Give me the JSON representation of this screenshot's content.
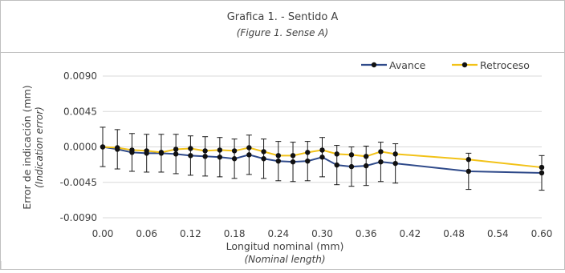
{
  "header": {
    "title": "Grafica 1. - Sentido A",
    "subtitle": "(Figure 1. Sense A)"
  },
  "chart_data": {
    "type": "line",
    "title": "",
    "xlabel": "Longitud nominal (mm)",
    "xlabel_en": "(Nominal length)",
    "ylabel": "Error de indicación (mm)",
    "ylabel_en": "(Indication error)",
    "xlim": [
      0,
      0.6
    ],
    "ylim": [
      -0.009,
      0.009
    ],
    "x_ticks": [
      "0.00",
      "0.06",
      "0.12",
      "0.18",
      "0.24",
      "0.30",
      "0.36",
      "0.42",
      "0.48",
      "0.54",
      "0.60"
    ],
    "y_ticks": [
      "0.0090",
      "0.0045",
      "0.0000",
      "-0.0045",
      "-0.0090"
    ],
    "grid": "horizontal",
    "legend_position": "top-right",
    "series": [
      {
        "name": "Avance",
        "color": "#2f4a8a",
        "x": [
          0.0,
          0.02,
          0.04,
          0.06,
          0.08,
          0.1,
          0.12,
          0.14,
          0.16,
          0.18,
          0.2,
          0.22,
          0.24,
          0.26,
          0.28,
          0.3,
          0.32,
          0.34,
          0.36,
          0.38,
          0.4,
          0.5,
          0.6
        ],
        "y": [
          0.0,
          -0.0003,
          -0.0007,
          -0.0008,
          -0.0008,
          -0.0009,
          -0.0011,
          -0.0012,
          -0.0013,
          -0.0015,
          -0.001,
          -0.0015,
          -0.0018,
          -0.0019,
          -0.0018,
          -0.0013,
          -0.0023,
          -0.0025,
          -0.0024,
          -0.0019,
          -0.0021,
          -0.0031,
          -0.0033
        ],
        "err": [
          0.0025,
          0.0025,
          0.0024,
          0.0024,
          0.0024,
          0.0025,
          0.0025,
          0.0025,
          0.0025,
          0.0025,
          0.0025,
          0.0025,
          0.0025,
          0.0025,
          0.0025,
          0.0025,
          0.0025,
          0.0025,
          0.0025,
          0.0025,
          0.0025,
          0.0023,
          0.0022
        ]
      },
      {
        "name": "Retroceso",
        "color": "#f2c218",
        "x": [
          0.0,
          0.02,
          0.04,
          0.06,
          0.08,
          0.1,
          0.12,
          0.14,
          0.16,
          0.18,
          0.2,
          0.22,
          0.24,
          0.26,
          0.28,
          0.3,
          0.32,
          0.34,
          0.36,
          0.38,
          0.4,
          0.5,
          0.6
        ],
        "y": [
          0.0,
          -0.0001,
          -0.0004,
          -0.0005,
          -0.0007,
          -0.0003,
          -0.0002,
          -0.0005,
          -0.0004,
          -0.0005,
          -0.0001,
          -0.0006,
          -0.0011,
          -0.0011,
          -0.0007,
          -0.0004,
          -0.0009,
          -0.001,
          -0.0012,
          -0.0006,
          -0.0009,
          -0.0016,
          -0.0026
        ]
      }
    ]
  }
}
